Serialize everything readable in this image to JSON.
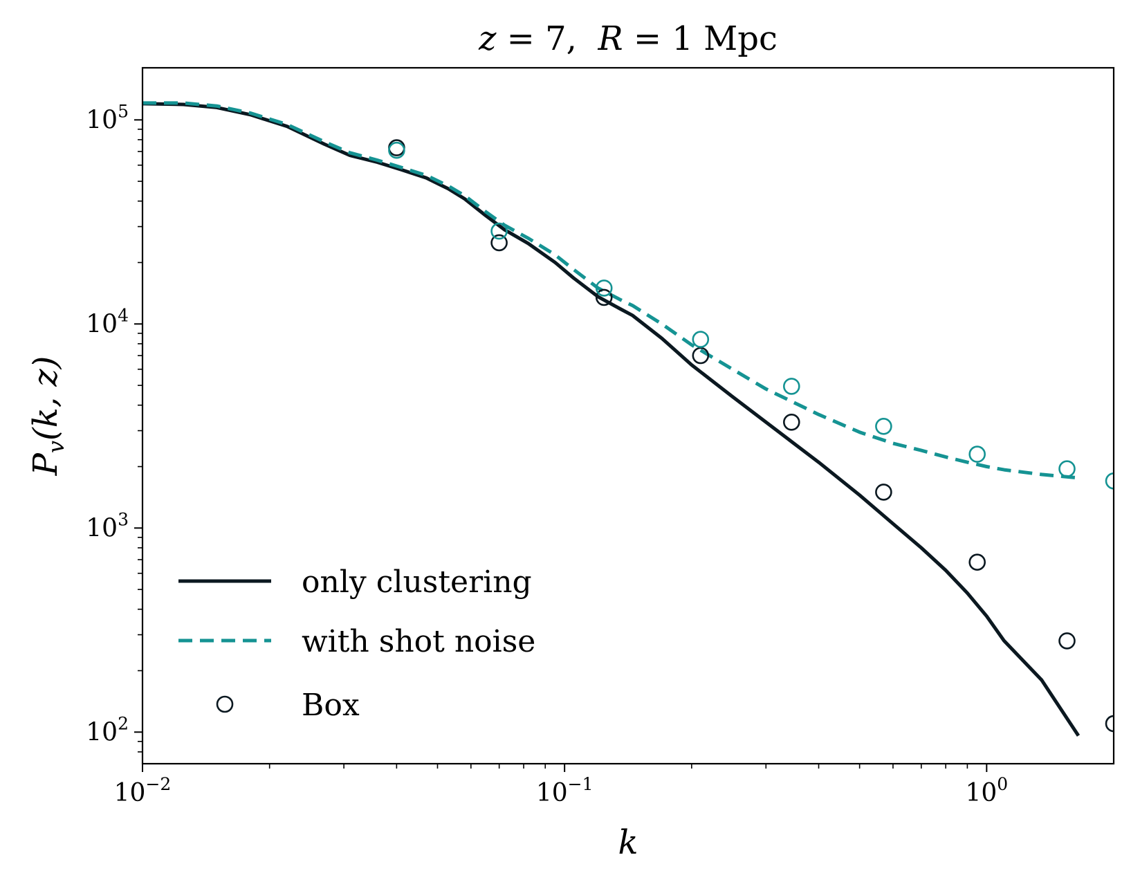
{
  "chart_data": {
    "type": "line",
    "title": "z = 7,  R = 1 Mpc",
    "title_parts": {
      "z_var": "z",
      "z_eq": " = 7,  ",
      "r_var": "R",
      "r_eq": " = 1 ",
      "unit": "Mpc"
    },
    "xlabel": "k",
    "ylabel": {
      "symbol": "P",
      "sub": "v",
      "args": "(k, z)"
    },
    "x_scale": "log",
    "y_scale": "log",
    "xlim": [
      0.01,
      2.0
    ],
    "ylim": [
      70,
      180000
    ],
    "x_ticks": [
      {
        "value": 0.01,
        "base": "10",
        "exp": "−2"
      },
      {
        "value": 0.1,
        "base": "10",
        "exp": "−1"
      },
      {
        "value": 1,
        "base": "10",
        "exp": "0"
      }
    ],
    "y_ticks": [
      {
        "value": 100,
        "base": "10",
        "exp": "2"
      },
      {
        "value": 1000,
        "base": "10",
        "exp": "3"
      },
      {
        "value": 10000,
        "base": "10",
        "exp": "4"
      },
      {
        "value": 100000,
        "base": "10",
        "exp": "5"
      }
    ],
    "grid": false,
    "legend_position": "lower-left",
    "series": [
      {
        "name": "only clustering",
        "style": "solid",
        "color": "#0b1820",
        "x": [
          0.01,
          0.0125,
          0.015,
          0.018,
          0.022,
          0.027,
          0.031,
          0.036,
          0.041,
          0.047,
          0.053,
          0.058,
          0.065,
          0.072,
          0.082,
          0.095,
          0.105,
          0.12,
          0.135,
          0.145,
          0.17,
          0.2,
          0.25,
          0.3,
          0.4,
          0.5,
          0.6,
          0.7,
          0.8,
          0.9,
          1.0,
          1.1,
          1.35,
          1.65
        ],
        "y": [
          120000,
          119000,
          115000,
          106000,
          93000,
          76000,
          67000,
          62000,
          57000,
          52000,
          46000,
          41000,
          34000,
          29000,
          24800,
          20000,
          16800,
          13600,
          11900,
          11000,
          8500,
          6300,
          4400,
          3300,
          2100,
          1450,
          1050,
          800,
          620,
          480,
          370,
          280,
          180,
          96
        ]
      },
      {
        "name": "with shot noise",
        "style": "dashed",
        "color": "#159393",
        "x": [
          0.01,
          0.0125,
          0.015,
          0.018,
          0.022,
          0.027,
          0.031,
          0.036,
          0.041,
          0.047,
          0.053,
          0.058,
          0.065,
          0.072,
          0.082,
          0.095,
          0.105,
          0.12,
          0.135,
          0.145,
          0.17,
          0.2,
          0.25,
          0.3,
          0.4,
          0.5,
          0.6,
          0.7,
          0.8,
          0.9,
          1.0,
          1.1,
          1.35,
          1.65
        ],
        "y": [
          121000,
          121000,
          117000,
          108000,
          95000,
          78000,
          69000,
          63500,
          58500,
          53500,
          47500,
          42500,
          35500,
          30500,
          26300,
          21800,
          18500,
          15000,
          13200,
          12300,
          10000,
          7900,
          6000,
          4800,
          3600,
          2950,
          2600,
          2400,
          2230,
          2100,
          2000,
          1930,
          1830,
          1760
        ]
      },
      {
        "name": "Box",
        "style": "markers",
        "color": "#0b1820",
        "x": [
          0.04,
          0.07,
          0.124,
          0.21,
          0.345,
          0.57,
          0.95,
          1.55,
          2.0
        ],
        "y": [
          73000,
          25000,
          13500,
          7000,
          3300,
          1500,
          680,
          280,
          110
        ]
      },
      {
        "name": "",
        "style": "markers",
        "color": "#159393",
        "x": [
          0.04,
          0.07,
          0.124,
          0.21,
          0.345,
          0.57,
          0.95,
          1.55,
          2.0
        ],
        "y": [
          71000,
          28500,
          15000,
          8400,
          4950,
          3150,
          2300,
          1950,
          1700
        ]
      }
    ]
  }
}
